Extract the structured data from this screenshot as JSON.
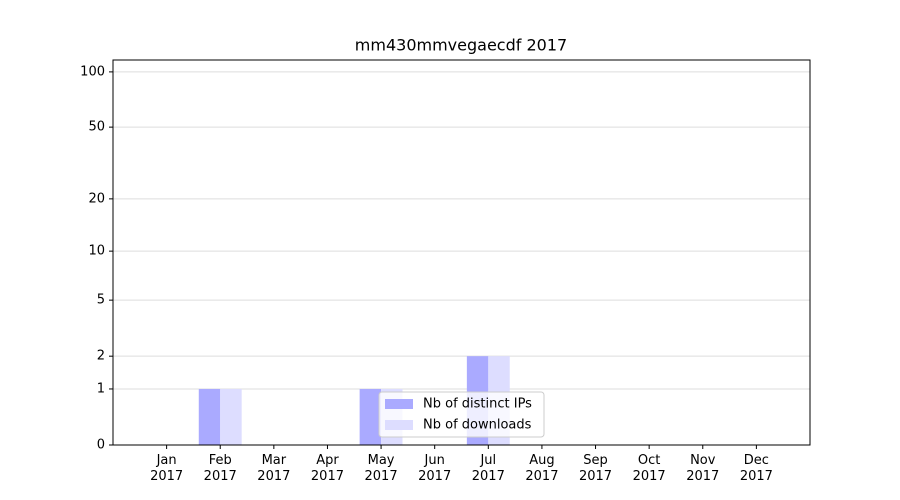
{
  "chart_data": {
    "type": "bar",
    "title": "mm430mmvegaecdf 2017",
    "categories": [
      "Jan 2017",
      "Feb 2017",
      "Mar 2017",
      "Apr 2017",
      "May 2017",
      "Jun 2017",
      "Jul 2017",
      "Aug 2017",
      "Sep 2017",
      "Oct 2017",
      "Nov 2017",
      "Dec 2017"
    ],
    "series": [
      {
        "name": "Nb of distinct IPs",
        "color": "#aaaaff",
        "values": [
          0,
          1,
          0,
          0,
          1,
          0,
          2,
          0,
          0,
          0,
          0,
          0
        ]
      },
      {
        "name": "Nb of downloads",
        "color": "#ddddff",
        "values": [
          0,
          1,
          0,
          0,
          1,
          0,
          2,
          0,
          0,
          0,
          0,
          0
        ]
      }
    ],
    "ylim": [
      0,
      116
    ],
    "yticks": [
      0,
      1,
      2,
      5,
      10,
      20,
      50,
      100
    ],
    "yscale": "symlog",
    "grid": true,
    "legend": "lower center"
  }
}
